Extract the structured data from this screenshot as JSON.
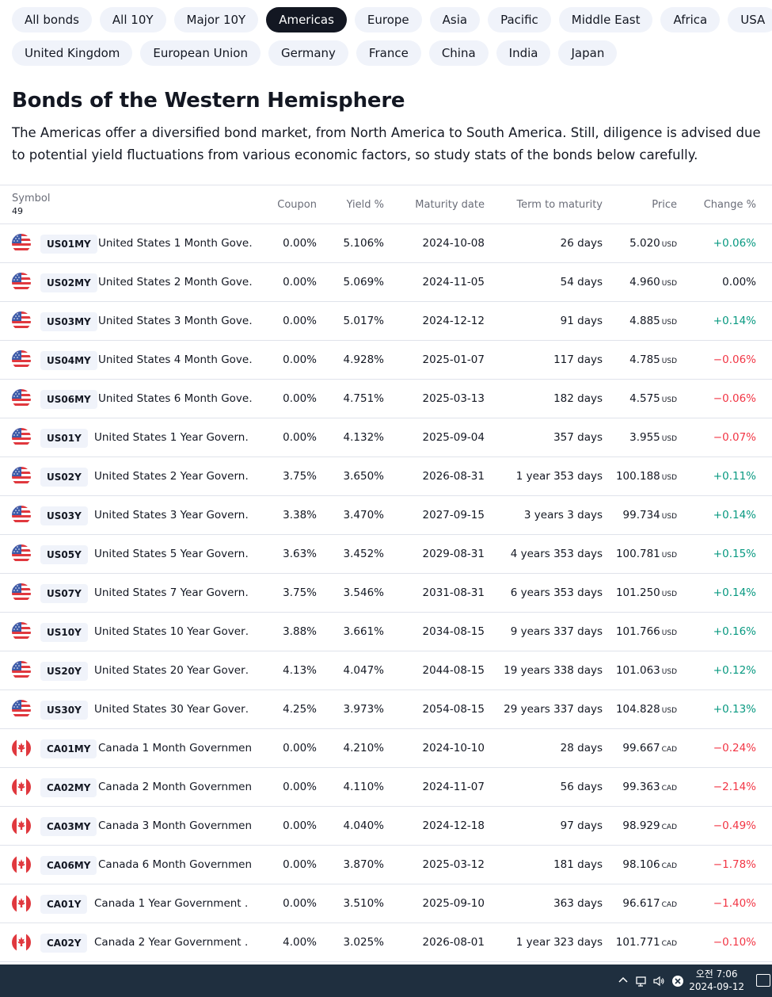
{
  "filters": {
    "row1": [
      "All bonds",
      "All 10Y",
      "Major 10Y",
      "Americas",
      "Europe",
      "Asia",
      "Pacific",
      "Middle East",
      "Africa",
      "USA"
    ],
    "row2": [
      "United Kingdom",
      "European Union",
      "Germany",
      "France",
      "China",
      "India",
      "Japan"
    ],
    "active": "Americas"
  },
  "page": {
    "title": "Bonds of the Western Hemisphere",
    "description": "The Americas offer a diversified bond market, from North America to South America. Still, diligence is advised due to potential yield fluctuations from various economic factors, so study stats of the bonds below carefully."
  },
  "table": {
    "headers": {
      "symbol": "Symbol",
      "count": "49",
      "coupon": "Coupon",
      "yield": "Yield %",
      "maturity": "Maturity date",
      "term": "Term to maturity",
      "price": "Price",
      "change": "Change %"
    },
    "rows": [
      {
        "flag": "us-flag-icon",
        "ticker": "US01MY",
        "name": "United States 1 Month Gove…",
        "coupon": "0.00%",
        "yield": "5.106%",
        "maturity": "2024-10-08",
        "term": "26 days",
        "price": "5.020",
        "currency": "USD",
        "change": "+0.06%",
        "dir": "pos"
      },
      {
        "flag": "us-flag-icon",
        "ticker": "US02MY",
        "name": "United States 2 Month Gove…",
        "coupon": "0.00%",
        "yield": "5.069%",
        "maturity": "2024-11-05",
        "term": "54 days",
        "price": "4.960",
        "currency": "USD",
        "change": "0.00%",
        "dir": "zero"
      },
      {
        "flag": "us-flag-icon",
        "ticker": "US03MY",
        "name": "United States 3 Month Gove…",
        "coupon": "0.00%",
        "yield": "5.017%",
        "maturity": "2024-12-12",
        "term": "91 days",
        "price": "4.885",
        "currency": "USD",
        "change": "+0.14%",
        "dir": "pos"
      },
      {
        "flag": "us-flag-icon",
        "ticker": "US04MY",
        "name": "United States 4 Month Gove…",
        "coupon": "0.00%",
        "yield": "4.928%",
        "maturity": "2025-01-07",
        "term": "117 days",
        "price": "4.785",
        "currency": "USD",
        "change": "−0.06%",
        "dir": "neg"
      },
      {
        "flag": "us-flag-icon",
        "ticker": "US06MY",
        "name": "United States 6 Month Gove…",
        "coupon": "0.00%",
        "yield": "4.751%",
        "maturity": "2025-03-13",
        "term": "182 days",
        "price": "4.575",
        "currency": "USD",
        "change": "−0.06%",
        "dir": "neg"
      },
      {
        "flag": "us-flag-icon",
        "ticker": "US01Y",
        "name": "United States 1 Year Govern…",
        "coupon": "0.00%",
        "yield": "4.132%",
        "maturity": "2025-09-04",
        "term": "357 days",
        "price": "3.955",
        "currency": "USD",
        "change": "−0.07%",
        "dir": "neg"
      },
      {
        "flag": "us-flag-icon",
        "ticker": "US02Y",
        "name": "United States 2 Year Govern…",
        "coupon": "3.75%",
        "yield": "3.650%",
        "maturity": "2026-08-31",
        "term": "1 year 353 days",
        "price": "100.188",
        "currency": "USD",
        "change": "+0.11%",
        "dir": "pos"
      },
      {
        "flag": "us-flag-icon",
        "ticker": "US03Y",
        "name": "United States 3 Year Govern…",
        "coupon": "3.38%",
        "yield": "3.470%",
        "maturity": "2027-09-15",
        "term": "3 years 3 days",
        "price": "99.734",
        "currency": "USD",
        "change": "+0.14%",
        "dir": "pos"
      },
      {
        "flag": "us-flag-icon",
        "ticker": "US05Y",
        "name": "United States 5 Year Govern…",
        "coupon": "3.63%",
        "yield": "3.452%",
        "maturity": "2029-08-31",
        "term": "4 years 353 days",
        "price": "100.781",
        "currency": "USD",
        "change": "+0.15%",
        "dir": "pos"
      },
      {
        "flag": "us-flag-icon",
        "ticker": "US07Y",
        "name": "United States 7 Year Govern…",
        "coupon": "3.75%",
        "yield": "3.546%",
        "maturity": "2031-08-31",
        "term": "6 years 353 days",
        "price": "101.250",
        "currency": "USD",
        "change": "+0.14%",
        "dir": "pos"
      },
      {
        "flag": "us-flag-icon",
        "ticker": "US10Y",
        "name": "United States 10 Year Gover…",
        "coupon": "3.88%",
        "yield": "3.661%",
        "maturity": "2034-08-15",
        "term": "9 years 337 days",
        "price": "101.766",
        "currency": "USD",
        "change": "+0.16%",
        "dir": "pos"
      },
      {
        "flag": "us-flag-icon",
        "ticker": "US20Y",
        "name": "United States 20 Year Gover…",
        "coupon": "4.13%",
        "yield": "4.047%",
        "maturity": "2044-08-15",
        "term": "19 years 338 days",
        "price": "101.063",
        "currency": "USD",
        "change": "+0.12%",
        "dir": "pos"
      },
      {
        "flag": "us-flag-icon",
        "ticker": "US30Y",
        "name": "United States 30 Year Gover…",
        "coupon": "4.25%",
        "yield": "3.973%",
        "maturity": "2054-08-15",
        "term": "29 years 337 days",
        "price": "104.828",
        "currency": "USD",
        "change": "+0.13%",
        "dir": "pos"
      },
      {
        "flag": "canada-flag-icon",
        "ticker": "CA01MY",
        "name": "Canada 1 Month Governmen…",
        "coupon": "0.00%",
        "yield": "4.210%",
        "maturity": "2024-10-10",
        "term": "28 days",
        "price": "99.667",
        "currency": "CAD",
        "change": "−0.24%",
        "dir": "neg"
      },
      {
        "flag": "canada-flag-icon",
        "ticker": "CA02MY",
        "name": "Canada 2 Month Governmen…",
        "coupon": "0.00%",
        "yield": "4.110%",
        "maturity": "2024-11-07",
        "term": "56 days",
        "price": "99.363",
        "currency": "CAD",
        "change": "−2.14%",
        "dir": "neg"
      },
      {
        "flag": "canada-flag-icon",
        "ticker": "CA03MY",
        "name": "Canada 3 Month Governmen…",
        "coupon": "0.00%",
        "yield": "4.040%",
        "maturity": "2024-12-18",
        "term": "97 days",
        "price": "98.929",
        "currency": "CAD",
        "change": "−0.49%",
        "dir": "neg"
      },
      {
        "flag": "canada-flag-icon",
        "ticker": "CA06MY",
        "name": "Canada 6 Month Governmen…",
        "coupon": "0.00%",
        "yield": "3.870%",
        "maturity": "2025-03-12",
        "term": "181 days",
        "price": "98.106",
        "currency": "CAD",
        "change": "−1.78%",
        "dir": "neg"
      },
      {
        "flag": "canada-flag-icon",
        "ticker": "CA01Y",
        "name": "Canada 1 Year Government …",
        "coupon": "0.00%",
        "yield": "3.510%",
        "maturity": "2025-09-10",
        "term": "363 days",
        "price": "96.617",
        "currency": "CAD",
        "change": "−1.40%",
        "dir": "neg"
      },
      {
        "flag": "canada-flag-icon",
        "ticker": "CA02Y",
        "name": "Canada 2 Year Government …",
        "coupon": "4.00%",
        "yield": "3.025%",
        "maturity": "2026-08-01",
        "term": "1 year 323 days",
        "price": "101.771",
        "currency": "CAD",
        "change": "−0.10%",
        "dir": "neg"
      }
    ]
  },
  "taskbar": {
    "time": "오전 7:06",
    "date": "2024-09-12",
    "icons": [
      "chevron-up-icon",
      "network-icon",
      "volume-icon",
      "close-circle-icon",
      "notification-icon"
    ]
  },
  "colors": {
    "positive": "#089981",
    "negative": "#f23645",
    "active_chip": "#131722",
    "chip": "#f0f3fa"
  }
}
